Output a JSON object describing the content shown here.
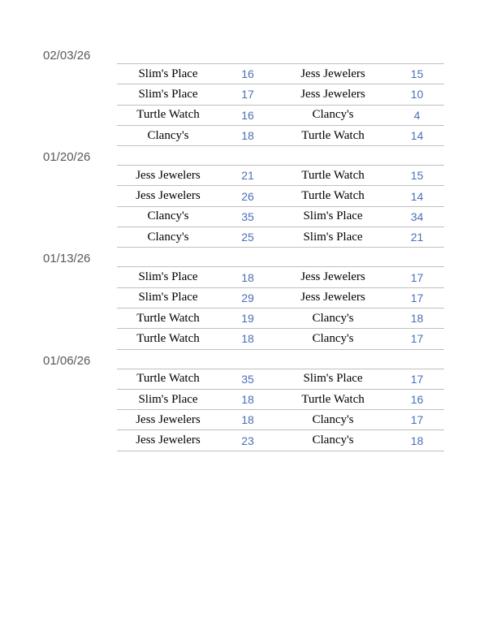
{
  "colors": {
    "date_text": "#595959",
    "team_text": "#000000",
    "score_text": "#4A6FB8",
    "row_line": "#BFBFBF",
    "page_background": "#ffffff"
  },
  "sections": [
    {
      "date": "02/03/26",
      "games": [
        {
          "team1": "Slim's Place",
          "score1": "16",
          "team2": "Jess Jewelers",
          "score2": "15"
        },
        {
          "team1": "Slim's Place",
          "score1": "17",
          "team2": "Jess Jewelers",
          "score2": "10"
        },
        {
          "team1": "Turtle Watch",
          "score1": "16",
          "team2": "Clancy's",
          "score2": "4"
        },
        {
          "team1": "Clancy's",
          "score1": "18",
          "team2": "Turtle Watch",
          "score2": "14"
        }
      ]
    },
    {
      "date": "01/20/26",
      "games": [
        {
          "team1": "Jess Jewelers",
          "score1": "21",
          "team2": "Turtle Watch",
          "score2": "15"
        },
        {
          "team1": "Jess Jewelers",
          "score1": "26",
          "team2": "Turtle Watch",
          "score2": "14"
        },
        {
          "team1": "Clancy's",
          "score1": "35",
          "team2": "Slim's Place",
          "score2": "34"
        },
        {
          "team1": "Clancy's",
          "score1": "25",
          "team2": "Slim's Place",
          "score2": "21"
        }
      ]
    },
    {
      "date": "01/13/26",
      "games": [
        {
          "team1": "Slim's Place",
          "score1": "18",
          "team2": "Jess Jewelers",
          "score2": "17"
        },
        {
          "team1": "Slim's Place",
          "score1": "29",
          "team2": "Jess Jewelers",
          "score2": "17"
        },
        {
          "team1": "Turtle Watch",
          "score1": "19",
          "team2": "Clancy's",
          "score2": "18"
        },
        {
          "team1": "Turtle Watch",
          "score1": "18",
          "team2": "Clancy's",
          "score2": "17"
        }
      ]
    },
    {
      "date": "01/06/26",
      "games": [
        {
          "team1": "Turtle Watch",
          "score1": "35",
          "team2": "Slim's Place",
          "score2": "17"
        },
        {
          "team1": "Slim's Place",
          "score1": "18",
          "team2": "Turtle Watch",
          "score2": "16"
        },
        {
          "team1": "Jess Jewelers",
          "score1": "18",
          "team2": "Clancy's",
          "score2": "17"
        },
        {
          "team1": "Jess Jewelers",
          "score1": "23",
          "team2": "Clancy's",
          "score2": "18"
        }
      ]
    }
  ]
}
